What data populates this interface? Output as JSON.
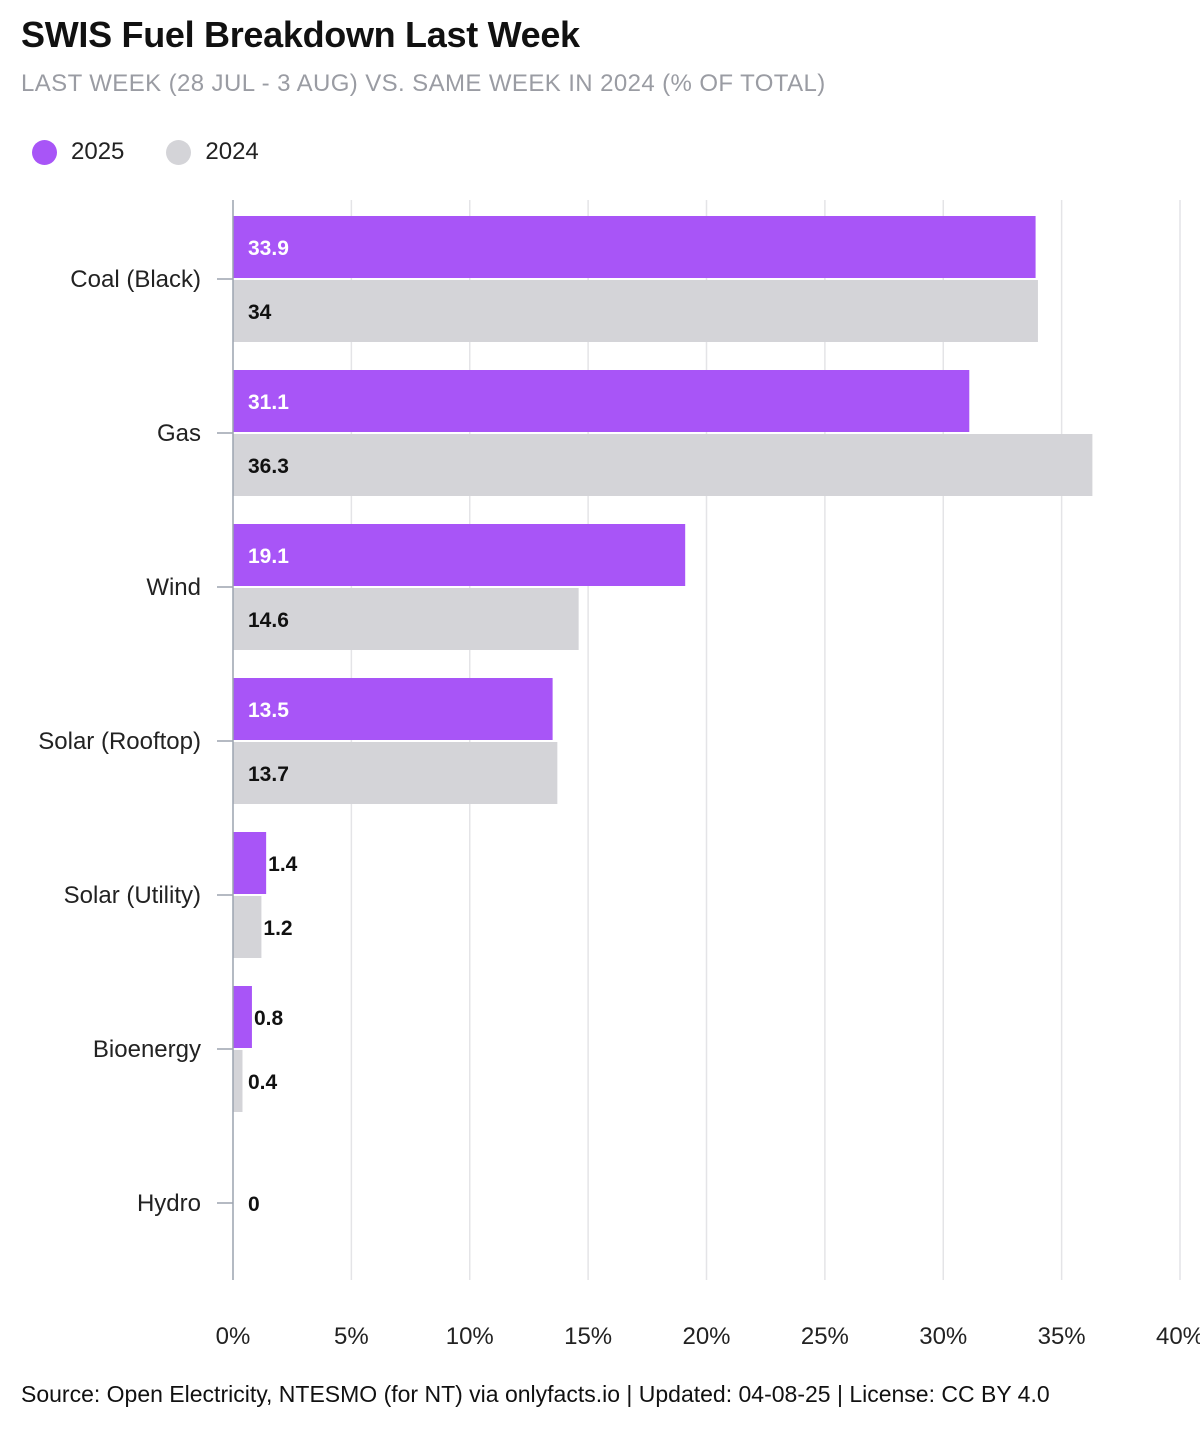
{
  "header": {
    "title": "SWIS Fuel Breakdown Last Week",
    "subtitle": "LAST WEEK (28 JUL - 3 AUG) VS. SAME WEEK IN 2024 (% OF TOTAL)"
  },
  "footer": {
    "source": "Source: Open Electricity, NTESMO (for NT) via onlyfacts.io | Updated: 04-08-25 | License: CC BY 4.0"
  },
  "chart_data": {
    "type": "bar",
    "orientation": "horizontal",
    "categories": [
      "Coal (Black)",
      "Gas",
      "Wind",
      "Solar (Rooftop)",
      "Solar (Utility)",
      "Bioenergy",
      "Hydro"
    ],
    "series": [
      {
        "name": "2025",
        "color": "#a855f7",
        "values": [
          33.9,
          31.1,
          19.1,
          13.5,
          1.4,
          0.8,
          0
        ]
      },
      {
        "name": "2024",
        "color": "#d4d4d8",
        "values": [
          34,
          36.3,
          14.6,
          13.7,
          1.2,
          0.4,
          0
        ]
      }
    ],
    "xlim": [
      0,
      40
    ],
    "x_ticks": [
      0,
      5,
      10,
      15,
      20,
      25,
      30,
      35,
      40
    ],
    "x_tick_labels": [
      "0%",
      "5%",
      "10%",
      "15%",
      "20%",
      "25%",
      "30%",
      "35%",
      "40%"
    ],
    "grid": true,
    "legend_position": "top-left",
    "data_labels": true
  }
}
